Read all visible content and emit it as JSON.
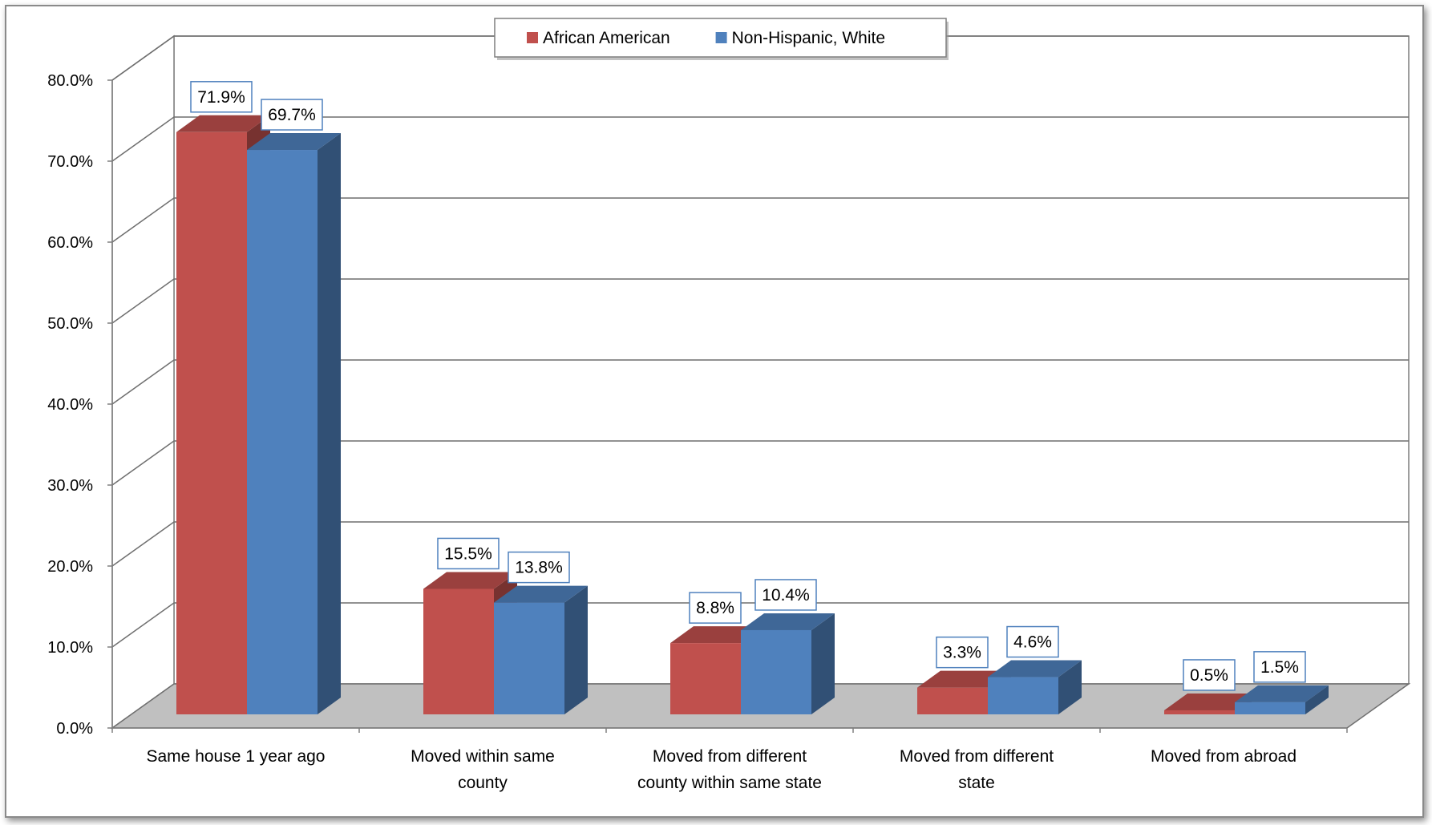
{
  "chart_data": {
    "type": "bar",
    "style": "3d-clustered-column",
    "title": "",
    "xlabel": "",
    "ylabel": "",
    "ylim": [
      0,
      80
    ],
    "ytick_labels": [
      "0.0%",
      "10.0%",
      "20.0%",
      "30.0%",
      "40.0%",
      "50.0%",
      "60.0%",
      "70.0%",
      "80.0%"
    ],
    "categories": [
      [
        "Same house 1 year ago"
      ],
      [
        "Moved within same",
        "county"
      ],
      [
        "Moved from different",
        "county within same state"
      ],
      [
        "Moved from different",
        "state"
      ],
      [
        "Moved from abroad"
      ]
    ],
    "series": [
      {
        "name": "African American",
        "color": "#c0504d",
        "values": [
          71.9,
          15.5,
          8.8,
          3.3,
          0.5
        ],
        "labels": [
          "71.9%",
          "15.5%",
          "8.8%",
          "3.3%",
          "0.5%"
        ]
      },
      {
        "name": "Non-Hispanic, White",
        "color": "#4f81bd",
        "values": [
          69.7,
          13.8,
          10.4,
          4.6,
          1.5
        ],
        "labels": [
          "69.7%",
          "13.8%",
          "10.4%",
          "4.6%",
          "1.5%"
        ]
      }
    ],
    "legend_position": "top",
    "grid": true,
    "data_labels": true
  }
}
